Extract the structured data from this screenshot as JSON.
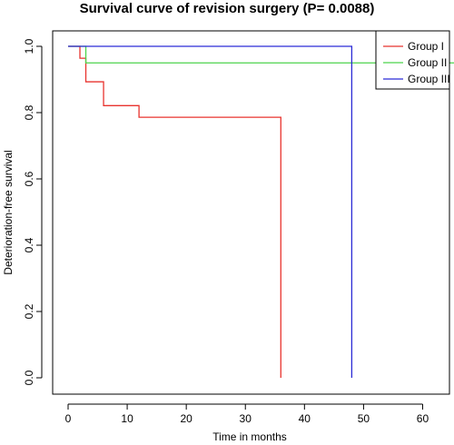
{
  "chart_data": {
    "type": "line",
    "title": "Survival curve of revision surgery (P= 0.0088)",
    "xlabel": "Time in months",
    "ylabel": "Deterioration-free survival",
    "xlim": [
      0,
      66
    ],
    "ylim": [
      0,
      1.0
    ],
    "xticks": [
      0,
      10,
      20,
      30,
      40,
      50,
      60
    ],
    "yticks": [
      0.0,
      0.2,
      0.4,
      0.6,
      0.8,
      1.0
    ],
    "xtick_labels": [
      "0",
      "10",
      "20",
      "30",
      "40",
      "50",
      "60"
    ],
    "ytick_labels": [
      "0.0",
      "0.2",
      "0.4",
      "0.6",
      "0.8",
      "1.0"
    ],
    "grid": false,
    "legend_position": "top-right",
    "step": true,
    "series": [
      {
        "name": "Group I",
        "color": "#e8332e",
        "points": [
          [
            0,
            1.0
          ],
          [
            2,
            0.964
          ],
          [
            3,
            0.893
          ],
          [
            6,
            0.821
          ],
          [
            12,
            0.786
          ],
          [
            36,
            0.786
          ],
          [
            36,
            0.0
          ]
        ]
      },
      {
        "name": "Group II",
        "color": "#4cd44c",
        "points": [
          [
            0,
            1.0
          ],
          [
            3,
            0.95
          ],
          [
            66,
            0.95
          ]
        ]
      },
      {
        "name": "Group III",
        "color": "#2b2bd6",
        "points": [
          [
            0,
            1.0
          ],
          [
            48,
            1.0
          ],
          [
            48,
            0.0
          ]
        ]
      }
    ]
  }
}
